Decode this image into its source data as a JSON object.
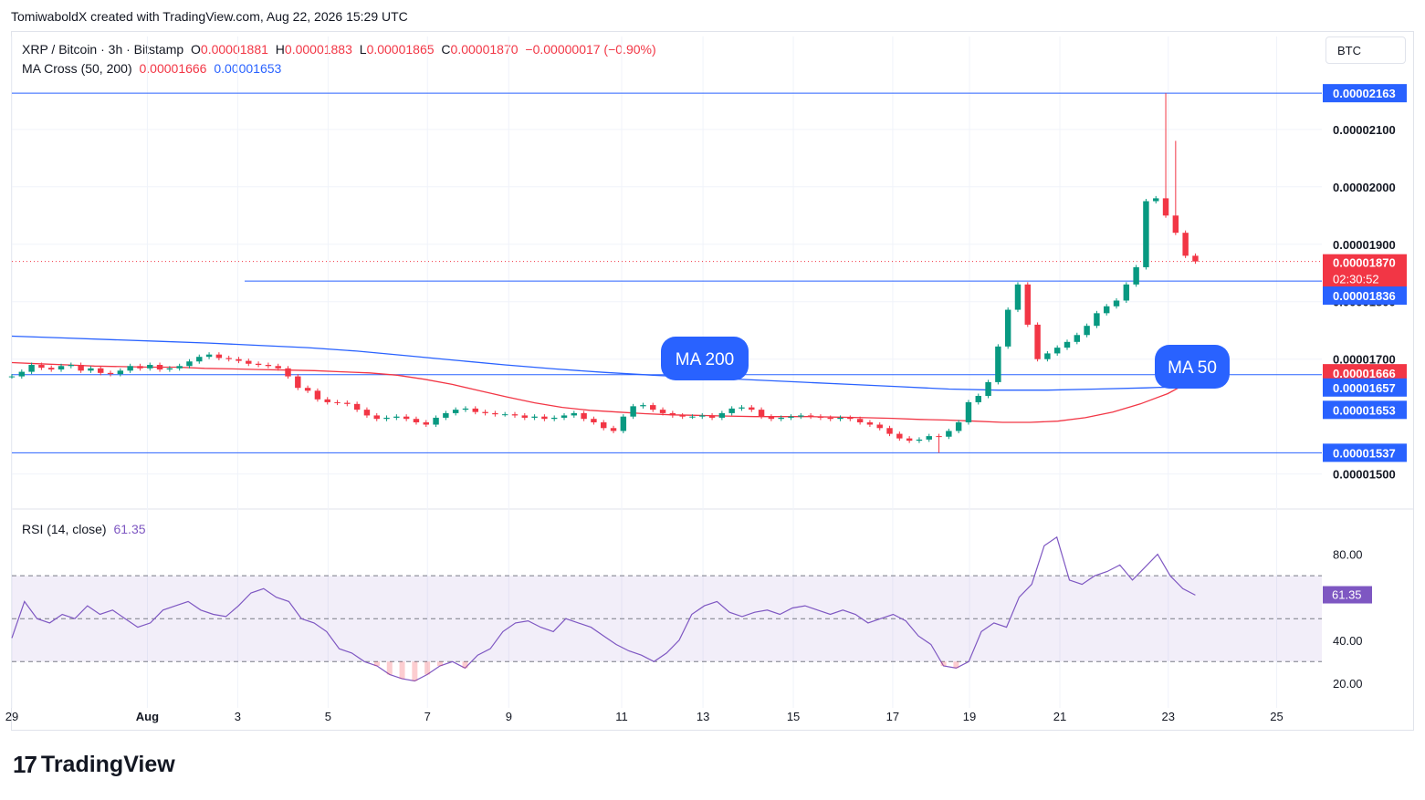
{
  "header": {
    "credit": "TomiwaboldX created with TradingView.com, Aug 22, 2026 15:29 UTC",
    "symbol": "XRP / Bitcoin · 3h · Bitstamp",
    "o_label": "O",
    "o_value": "0.00001881",
    "h_label": "H",
    "h_value": "0.00001883",
    "l_label": "L",
    "l_value": "0.00001865",
    "c_label": "C",
    "c_value": "0.00001870",
    "change": "−0.00000017 (−0.90%)",
    "ma_label": "MA Cross (50, 200)",
    "ma50_value": "0.00001666",
    "ma200_value": "0.00001653",
    "rsi_label": "RSI (14, close)",
    "rsi_value": "61.35",
    "currency": "BTC"
  },
  "footer": {
    "brand": "TradingView",
    "brand_mark": "17"
  },
  "colors": {
    "up": "#089981",
    "down": "#f23645",
    "ma50": "#f23645",
    "ma200": "#2962ff",
    "level": "#2962ff",
    "rsi": "#7e57c2",
    "grid": "#f0f3fa",
    "text": "#131722"
  },
  "chart_data": [
    {
      "type": "candlestick",
      "title": "XRP / Bitcoin · 3h · Bitstamp",
      "x_ticks": [
        {
          "label": "29",
          "x": 0
        },
        {
          "label": "Aug",
          "x": 3
        },
        {
          "label": "3",
          "x": 5
        },
        {
          "label": "5",
          "x": 7
        },
        {
          "label": "7",
          "x": 9.2
        },
        {
          "label": "9",
          "x": 11
        },
        {
          "label": "11",
          "x": 13.5
        },
        {
          "label": "13",
          "x": 15.3
        },
        {
          "label": "15",
          "x": 17.3
        },
        {
          "label": "17",
          "x": 19.5
        },
        {
          "label": "19",
          "x": 21.2
        },
        {
          "label": "21",
          "x": 23.2
        },
        {
          "label": "23",
          "x": 25.6
        },
        {
          "label": "25",
          "x": 28
        }
      ],
      "y_ticks": [
        {
          "label": "0.00002100",
          "value": 2100
        },
        {
          "label": "0.00002000",
          "value": 2000
        },
        {
          "label": "0.00001900",
          "value": 1900
        },
        {
          "label": "0.00001800",
          "value": 1800
        },
        {
          "label": "0.00001700",
          "value": 1700
        },
        {
          "label": "0.00001500",
          "value": 1500
        }
      ],
      "y_unit": "×1e-8 BTC",
      "ylim": [
        1455,
        2195
      ],
      "xlim": [
        0,
        29
      ],
      "candles_close": [
        1670,
        1678,
        1690,
        1685,
        1682,
        1688,
        1690,
        1680,
        1684,
        1676,
        1674,
        1680,
        1688,
        1684,
        1690,
        1682,
        1684,
        1688,
        1696,
        1704,
        1708,
        1702,
        1700,
        1697,
        1692,
        1690,
        1688,
        1684,
        1670,
        1650,
        1645,
        1630,
        1625,
        1624,
        1622,
        1612,
        1602,
        1596,
        1598,
        1600,
        1596,
        1590,
        1586,
        1598,
        1606,
        1612,
        1614,
        1608,
        1606,
        1604,
        1604,
        1602,
        1598,
        1600,
        1596,
        1598,
        1602,
        1606,
        1596,
        1590,
        1580,
        1575,
        1600,
        1618,
        1620,
        1612,
        1606,
        1602,
        1600,
        1600,
        1602,
        1598,
        1606,
        1614,
        1616,
        1612,
        1600,
        1596,
        1598,
        1600,
        1602,
        1600,
        1598,
        1596,
        1598,
        1596,
        1590,
        1586,
        1580,
        1570,
        1562,
        1558,
        1560,
        1566,
        1565,
        1575,
        1590,
        1625,
        1636,
        1660,
        1722,
        1786,
        1830,
        1760,
        1700,
        1710,
        1720,
        1730,
        1742,
        1758,
        1780,
        1792,
        1802,
        1830,
        1860,
        1975,
        1980,
        1950,
        1920,
        1880,
        1870
      ],
      "candles_highs_note": "spike to 0.00002163 on Aug 22, low 0.00001537 on Aug 19",
      "series": [
        {
          "name": "MA 50",
          "values": [
            1694,
            1692,
            1690,
            1688,
            1687,
            1686,
            1686,
            1684,
            1683,
            1682,
            1681,
            1680,
            1678,
            1676,
            1672,
            1665,
            1656,
            1645,
            1634,
            1624,
            1616,
            1611,
            1608,
            1605,
            1603,
            1602,
            1601,
            1600,
            1600,
            1600,
            1599,
            1598,
            1597,
            1595,
            1594,
            1592,
            1590,
            1590,
            1592,
            1598,
            1608,
            1622,
            1640,
            1666
          ],
          "x_range": [
            0,
            26.2
          ]
        },
        {
          "name": "MA 200",
          "values": [
            1740,
            1737,
            1734,
            1731,
            1728,
            1724,
            1720,
            1714,
            1706,
            1698,
            1690,
            1683,
            1677,
            1672,
            1668,
            1664,
            1660,
            1656,
            1652,
            1648,
            1646,
            1646,
            1648,
            1650,
            1653
          ],
          "x_range": [
            0,
            26.2
          ]
        }
      ],
      "annotations": [
        {
          "text": "MA 200",
          "target": "MA 200"
        },
        {
          "text": "MA 50",
          "target": "MA 50"
        }
      ],
      "levels": [
        {
          "label": "0.00002163",
          "value": 2163,
          "color": "#2962ff"
        },
        {
          "label": "0.00001836",
          "value": 1836,
          "color": "#2962ff"
        },
        {
          "label": "0.00001666",
          "value": 1666,
          "color": "#f23645"
        },
        {
          "label": "0.00001657",
          "value": 1657,
          "color": "#2962ff"
        },
        {
          "label": "0.00001653",
          "value": 1653,
          "color": "#2962ff"
        },
        {
          "label": "0.00001537",
          "value": 1537,
          "color": "#2962ff"
        }
      ],
      "last_price": {
        "label": "0.00001870",
        "countdown": "02:30:52",
        "value": 1870
      },
      "grid": true
    },
    {
      "type": "line",
      "title": "RSI (14, close)",
      "y_ticks": [
        {
          "label": "80.00",
          "value": 80
        },
        {
          "label": "40.00",
          "value": 40
        },
        {
          "label": "20.00",
          "value": 20
        }
      ],
      "ylim": [
        11,
        96
      ],
      "band": [
        30,
        70
      ],
      "midline": 50,
      "last_value": {
        "label": "61.35",
        "value": 61.35
      },
      "series": [
        {
          "name": "RSI",
          "values": [
            41,
            58,
            50,
            48,
            52,
            50,
            56,
            52,
            54,
            50,
            46,
            48,
            54,
            56,
            58,
            54,
            52,
            51,
            56,
            62,
            64,
            60,
            58,
            50,
            48,
            44,
            36,
            34,
            30,
            28,
            24,
            22,
            21,
            24,
            28,
            30,
            27,
            33,
            36,
            44,
            48,
            49,
            46,
            44,
            50,
            48,
            46,
            42,
            38,
            35,
            33,
            30,
            34,
            40,
            52,
            56,
            58,
            53,
            51,
            53,
            54,
            52,
            55,
            56,
            54,
            52,
            54,
            52,
            48,
            50,
            52,
            49,
            42,
            38,
            28,
            27,
            30,
            44,
            48,
            46,
            60,
            66,
            84,
            88,
            68,
            66,
            70,
            72,
            75,
            68,
            74,
            80,
            70,
            64,
            61
          ],
          "x_range": [
            0,
            26.2
          ]
        }
      ],
      "grid": true
    }
  ]
}
